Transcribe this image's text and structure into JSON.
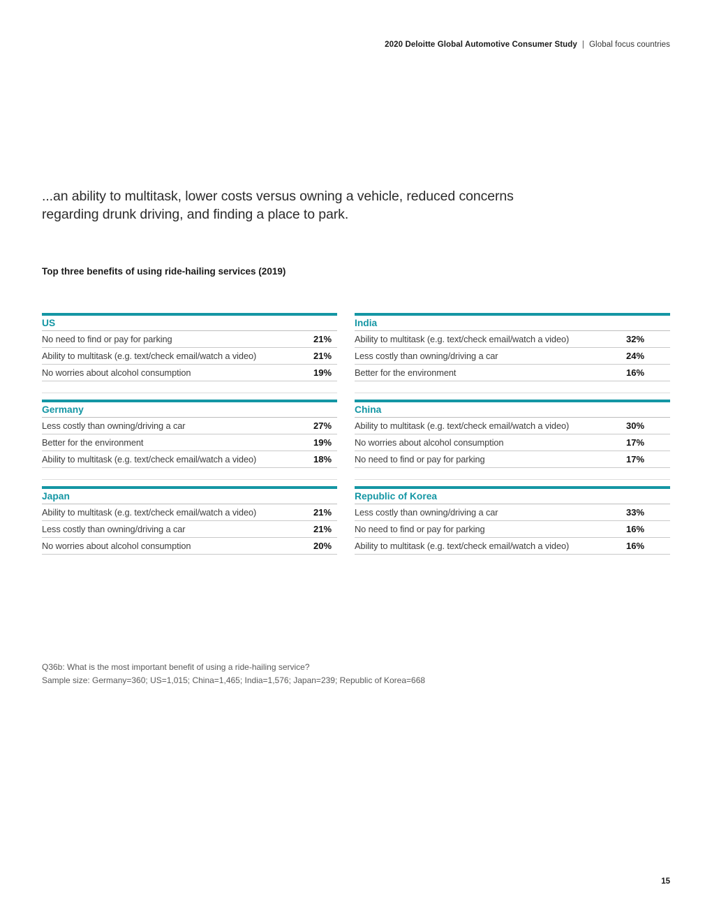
{
  "header": {
    "title_bold": "2020 Deloitte Global Automotive Consumer Study",
    "separator": "|",
    "subtitle": "Global focus countries"
  },
  "intro": {
    "line1": "...an ability to multitask, lower costs versus owning a vehicle, reduced concerns",
    "line2": "regarding drunk driving, and finding a place to park."
  },
  "caption": "Top three benefits of using ride-hailing services (2019)",
  "colors": {
    "accent_teal": "#1496A4"
  },
  "chart_data": {
    "type": "table",
    "title": "Top three benefits of using ride-hailing services (2019)",
    "tables": [
      {
        "country": "US",
        "rows": [
          {
            "label": "No need to find or pay for parking",
            "value": "21%"
          },
          {
            "label": "Ability to multitask (e.g. text/check email/watch a video)",
            "value": "21%"
          },
          {
            "label": "No worries about alcohol consumption",
            "value": "19%"
          }
        ]
      },
      {
        "country": "India",
        "rows": [
          {
            "label": "Ability to multitask (e.g. text/check email/watch a video)",
            "value": "32%"
          },
          {
            "label": "Less costly than owning/driving a car",
            "value": "24%"
          },
          {
            "label": "Better for the environment",
            "value": "16%"
          }
        ]
      },
      {
        "country": "Germany",
        "rows": [
          {
            "label": "Less costly than owning/driving a car",
            "value": "27%"
          },
          {
            "label": "Better for the environment",
            "value": "19%"
          },
          {
            "label": "Ability to multitask (e.g. text/check email/watch a video)",
            "value": "18%"
          }
        ]
      },
      {
        "country": "China",
        "rows": [
          {
            "label": "Ability to multitask (e.g. text/check email/watch a video)",
            "value": "30%"
          },
          {
            "label": "No worries about alcohol consumption",
            "value": "17%"
          },
          {
            "label": "No need to find or pay for parking",
            "value": "17%"
          }
        ]
      },
      {
        "country": "Japan",
        "rows": [
          {
            "label": "Ability to multitask (e.g. text/check email/watch a video)",
            "value": "21%"
          },
          {
            "label": "Less costly than owning/driving a car",
            "value": "21%"
          },
          {
            "label": "No worries about alcohol consumption",
            "value": "20%"
          }
        ]
      },
      {
        "country": "Republic of Korea",
        "rows": [
          {
            "label": "Less costly than owning/driving a car",
            "value": "33%"
          },
          {
            "label": "No need to find or pay for parking",
            "value": "16%"
          },
          {
            "label": "Ability to multitask (e.g. text/check email/watch a video)",
            "value": "16%"
          }
        ]
      }
    ]
  },
  "footnotes": {
    "question": "Q36b: What is the most important benefit of using a ride-hailing service?",
    "sample_size": "Sample size: Germany=360; US=1,015; China=1,465; India=1,576; Japan=239; Republic of Korea=668"
  },
  "page_number": "15"
}
